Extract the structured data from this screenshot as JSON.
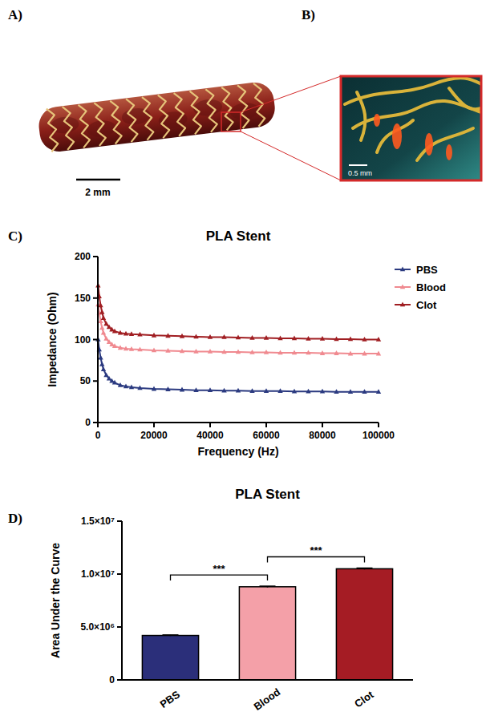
{
  "figure": {
    "panels": [
      {
        "letter": "A)",
        "scale_bar": "2 mm"
      },
      {
        "letter": "B)",
        "scale_bar": "0.5 mm"
      },
      {
        "letter": "C)"
      },
      {
        "letter": "D)"
      }
    ]
  },
  "chart_data": [
    {
      "type": "line",
      "title": "PLA Stent",
      "x_label": "Frequency (Hz)",
      "y_label": "Impedance (Ohm)",
      "x": [
        100,
        500,
        1000,
        1500,
        2000,
        3000,
        4000,
        5000,
        6000,
        8000,
        10000,
        12000,
        15000,
        20000,
        25000,
        30000,
        35000,
        40000,
        45000,
        50000,
        55000,
        60000,
        65000,
        70000,
        75000,
        80000,
        85000,
        90000,
        95000,
        100000
      ],
      "series": [
        {
          "name": "PBS",
          "color": "#2b3a80",
          "marker": "triangle",
          "values": [
            100,
            88,
            78,
            70,
            64,
            57,
            53,
            50,
            48,
            45,
            43.5,
            42.5,
            41.5,
            40.5,
            40,
            39.5,
            39,
            39,
            38.5,
            38.5,
            38,
            38,
            38,
            37.5,
            37.5,
            37.5,
            37,
            37,
            37,
            37
          ]
        },
        {
          "name": "Blood",
          "color": "#f08a90",
          "marker": "triangle",
          "values": [
            142,
            132,
            122,
            114,
            108,
            101,
            97,
            94,
            92,
            90,
            89,
            88.5,
            88,
            87,
            86.5,
            86,
            85.5,
            85.5,
            85,
            85,
            84.5,
            84.5,
            84,
            84,
            84,
            83.5,
            83.5,
            83,
            83,
            83
          ]
        },
        {
          "name": "Clot",
          "color": "#a01e22",
          "marker": "triangle",
          "values": [
            165,
            152,
            141,
            133,
            126,
            119,
            115,
            112,
            110,
            108,
            107,
            106.5,
            106,
            105,
            104.5,
            104,
            103.5,
            103,
            103,
            102.5,
            102,
            102,
            101.5,
            101.5,
            101,
            101,
            100.5,
            100.5,
            100,
            100
          ]
        }
      ],
      "xlim": [
        0,
        100000
      ],
      "xticks": [
        0,
        20000,
        40000,
        60000,
        80000,
        100000
      ],
      "ylim": [
        0,
        200
      ],
      "yticks": [
        0,
        50,
        100,
        150,
        200
      ],
      "legend": "right",
      "grid": false
    },
    {
      "type": "bar",
      "title": "PLA Stent",
      "y_label": "Area Under the Curve",
      "categories": [
        "PBS",
        "Blood",
        "Clot"
      ],
      "values": [
        4200000,
        8800000,
        10500000
      ],
      "errors": [
        50000,
        60000,
        70000
      ],
      "colors": [
        "#2b2f7a",
        "#f4a0a8",
        "#a51c24"
      ],
      "ylim": [
        0,
        15000000
      ],
      "yticks": [
        0,
        {
          "value": 5000000,
          "label": "5.0×10⁶"
        },
        {
          "value": 10000000,
          "label": "1.0×10⁷"
        },
        {
          "value": 15000000,
          "label": "1.5×10⁷"
        }
      ],
      "annotations": [
        {
          "text": "***",
          "from": 0,
          "to": 1
        },
        {
          "text": "***",
          "from": 1,
          "to": 2
        }
      ],
      "grid": false
    }
  ]
}
